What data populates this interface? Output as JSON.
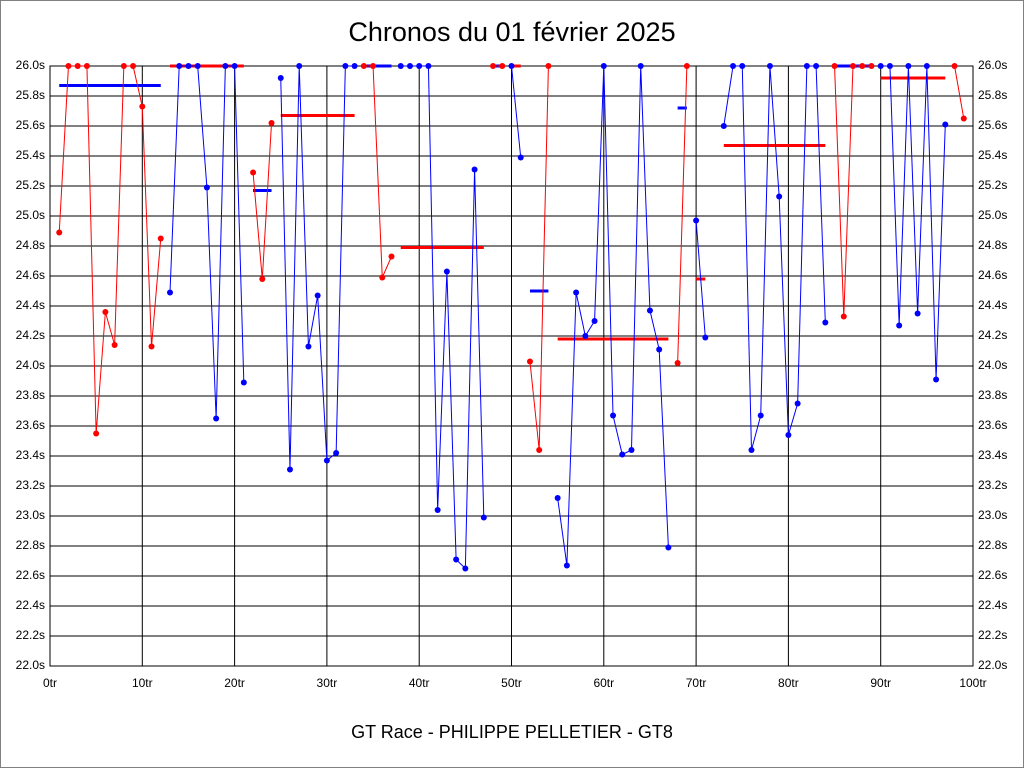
{
  "chart_data": {
    "type": "line",
    "title": "Chronos du 01 février 2025",
    "footer": "GT Race - PHILIPPE PELLETIER - GT8",
    "xlim": [
      0,
      100
    ],
    "xticks": [
      {
        "value": 0,
        "label": "0tr"
      },
      {
        "value": 10,
        "label": "10tr"
      },
      {
        "value": 20,
        "label": "20tr"
      },
      {
        "value": 30,
        "label": "30tr"
      },
      {
        "value": 40,
        "label": "40tr"
      },
      {
        "value": 50,
        "label": "50tr"
      },
      {
        "value": 60,
        "label": "60tr"
      },
      {
        "value": 70,
        "label": "70tr"
      },
      {
        "value": 80,
        "label": "80tr"
      },
      {
        "value": 90,
        "label": "90tr"
      },
      {
        "value": 100,
        "label": "100tr"
      }
    ],
    "ylim": [
      22.0,
      26.0
    ],
    "yticks": [
      {
        "value": 22.0,
        "label": "22.0s"
      },
      {
        "value": 22.2,
        "label": "22.2s"
      },
      {
        "value": 22.4,
        "label": "22.4s"
      },
      {
        "value": 22.6,
        "label": "22.6s"
      },
      {
        "value": 22.8,
        "label": "22.8s"
      },
      {
        "value": 23.0,
        "label": "23.0s"
      },
      {
        "value": 23.2,
        "label": "23.2s"
      },
      {
        "value": 23.4,
        "label": "23.4s"
      },
      {
        "value": 23.6,
        "label": "23.6s"
      },
      {
        "value": 23.8,
        "label": "23.8s"
      },
      {
        "value": 24.0,
        "label": "24.0s"
      },
      {
        "value": 24.2,
        "label": "24.2s"
      },
      {
        "value": 24.4,
        "label": "24.4s"
      },
      {
        "value": 24.6,
        "label": "24.6s"
      },
      {
        "value": 24.8,
        "label": "24.8s"
      },
      {
        "value": 25.0,
        "label": "25.0s"
      },
      {
        "value": 25.2,
        "label": "25.2s"
      },
      {
        "value": 25.4,
        "label": "25.4s"
      },
      {
        "value": 25.6,
        "label": "25.6s"
      },
      {
        "value": 25.8,
        "label": "25.8s"
      },
      {
        "value": 26.0,
        "label": "26.0s"
      }
    ],
    "grid": true,
    "stints": [
      {
        "color": "#ff0000",
        "average_color": "#0000ff",
        "average": 25.87,
        "x": [
          1,
          2,
          3,
          4,
          5,
          6,
          7,
          8,
          9,
          10,
          11,
          12
        ],
        "values": [
          24.89,
          26.0,
          26.0,
          26.0,
          23.55,
          24.36,
          24.14,
          26.0,
          26.0,
          25.73,
          24.13,
          24.85
        ]
      },
      {
        "color": "#0000ff",
        "average_color": "#ff0000",
        "average": 26.0,
        "x": [
          13,
          14,
          15,
          16,
          17,
          18,
          19,
          20,
          21
        ],
        "values": [
          24.49,
          26.0,
          26.0,
          26.0,
          25.19,
          23.65,
          26.0,
          26.0,
          23.89
        ]
      },
      {
        "color": "#ff0000",
        "average_color": "#0000ff",
        "average": 25.17,
        "x": [
          22,
          23,
          24
        ],
        "values": [
          25.29,
          24.58,
          25.62
        ]
      },
      {
        "color": "#0000ff",
        "average_color": "#ff0000",
        "average": 25.67,
        "x": [
          25,
          26,
          27,
          28,
          29,
          30,
          31,
          32,
          33
        ],
        "values": [
          25.92,
          23.31,
          26.0,
          24.13,
          24.47,
          23.37,
          23.42,
          26.0,
          26.0
        ]
      },
      {
        "color": "#ff0000",
        "average_color": "#0000ff",
        "average": 26.0,
        "x": [
          34,
          35,
          36,
          37
        ],
        "values": [
          26.0,
          26.0,
          24.59,
          24.73
        ]
      },
      {
        "color": "#0000ff",
        "average_color": "#ff0000",
        "average": 24.79,
        "x": [
          38,
          39,
          40,
          41,
          42,
          43,
          44,
          45,
          46,
          47
        ],
        "values": [
          26.0,
          26.0,
          26.0,
          26.0,
          23.04,
          24.63,
          22.71,
          22.65,
          25.31,
          22.99
        ]
      },
      {
        "color": "#ff0000",
        "average_color": "#0000ff",
        "average": 26.0,
        "x": [
          48,
          49
        ],
        "values": [
          26.0,
          26.0
        ]
      },
      {
        "color": "#0000ff",
        "average_color": "#ff0000",
        "average": 26.0,
        "x": [
          50,
          51
        ],
        "values": [
          26.0,
          25.39
        ]
      },
      {
        "color": "#ff0000",
        "average_color": "#0000ff",
        "average": 24.5,
        "x": [
          52,
          53,
          54
        ],
        "values": [
          24.03,
          23.44,
          26.0
        ]
      },
      {
        "color": "#0000ff",
        "average_color": "#ff0000",
        "average": 24.18,
        "x": [
          55,
          56,
          57,
          58,
          59,
          60,
          61,
          62,
          63,
          64,
          65,
          66,
          67
        ],
        "values": [
          23.12,
          22.67,
          24.49,
          24.2,
          24.3,
          26.0,
          23.67,
          23.41,
          23.44,
          26.0,
          24.37,
          24.11,
          22.79
        ]
      },
      {
        "color": "#ff0000",
        "average_color": "#0000ff",
        "average": 25.72,
        "x": [
          68,
          69
        ],
        "values": [
          24.02,
          26.0
        ]
      },
      {
        "color": "#0000ff",
        "average_color": "#ff0000",
        "average": 24.58,
        "x": [
          70,
          71
        ],
        "values": [
          24.97,
          24.19
        ]
      },
      {
        "color": "#0000ff",
        "average_color": "#ff0000",
        "average": 25.47,
        "x": [
          73,
          74,
          75,
          76,
          77,
          78,
          79,
          80,
          81,
          82,
          83,
          84
        ],
        "values": [
          25.6,
          26.0,
          26.0,
          23.44,
          23.67,
          26.0,
          25.13,
          23.54,
          23.75,
          26.0,
          26.0,
          24.29
        ]
      },
      {
        "color": "#ff0000",
        "average_color": "#0000ff",
        "average": 26.0,
        "x": [
          85,
          86,
          87,
          88,
          89
        ],
        "values": [
          26.0,
          24.33,
          26.0,
          26.0,
          26.0
        ]
      },
      {
        "color": "#0000ff",
        "average_color": "#ff0000",
        "average": 25.92,
        "x": [
          90,
          91,
          92,
          93,
          94,
          95,
          96,
          97
        ],
        "values": [
          26.0,
          26.0,
          24.27,
          26.0,
          24.35,
          26.0,
          23.91,
          25.61
        ]
      },
      {
        "color": "#ff0000",
        "x": [
          98,
          99
        ],
        "values": [
          26.0,
          25.65
        ]
      }
    ]
  }
}
